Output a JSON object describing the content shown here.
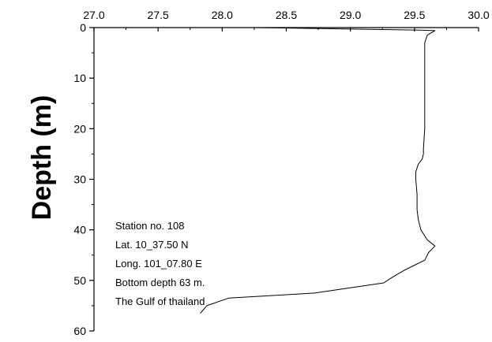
{
  "chart_data": {
    "type": "line",
    "title": "",
    "xlabel": "",
    "ylabel": "Depth (m)",
    "x_axis_position": "top",
    "y_inverted": true,
    "xlim": [
      27.0,
      30.0
    ],
    "ylim": [
      0,
      60
    ],
    "x_ticks": [
      "27.0",
      "27.5",
      "28.0",
      "28.5",
      "29.0",
      "29.5",
      "30.0"
    ],
    "y_ticks": [
      "0",
      "10",
      "20",
      "30",
      "40",
      "50",
      "60"
    ],
    "grid": false,
    "line_color": "#000000",
    "series": [
      {
        "x": [
          28.25,
          29.55,
          29.66,
          29.6,
          29.58,
          29.58,
          29.58,
          29.58,
          29.58,
          29.58,
          29.57,
          29.57,
          29.57,
          29.56,
          29.53,
          29.51,
          29.51,
          29.52,
          29.52,
          29.53,
          29.55,
          29.6,
          29.66,
          29.61,
          29.58,
          29.42,
          29.32,
          29.26,
          28.72,
          28.05,
          27.88,
          27.83
        ],
        "y": [
          0.0,
          0.5,
          0.6,
          1.5,
          3.0,
          5.0,
          7.0,
          10.0,
          15.0,
          20.0,
          24.0,
          24.5,
          25.0,
          26.0,
          27.0,
          28.5,
          30.0,
          33.0,
          36.0,
          38.0,
          40.0,
          42.0,
          43.2,
          44.5,
          46.0,
          48.0,
          49.5,
          50.5,
          52.5,
          53.5,
          55.0,
          56.5
        ]
      }
    ],
    "annotation_lines": [
      "Station no. 108",
      "Lat. 10_37.50 N",
      "Long. 101_07.80 E",
      "Bottom depth 63 m.",
      "The Gulf of thailand"
    ]
  }
}
